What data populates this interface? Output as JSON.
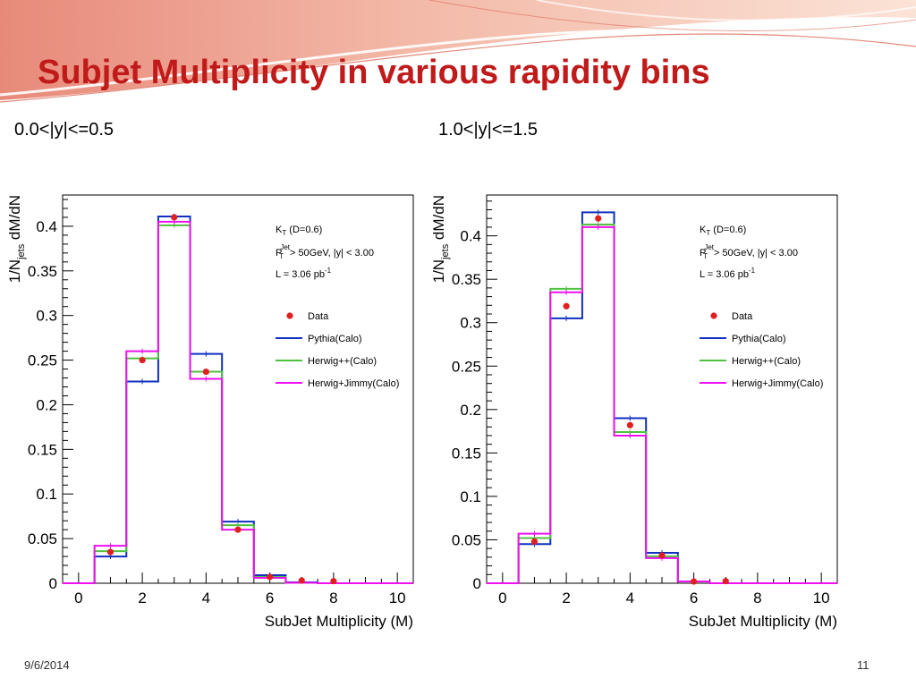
{
  "slide": {
    "title": "Subjet Multiplicity in various rapidity bins",
    "date": "9/6/2014",
    "page_number": "11",
    "accent_color": "#c01a1a",
    "banner_color": "#e8a090"
  },
  "chart_data": [
    {
      "type": "line",
      "title": "0.0<|y|<=0.5",
      "xlabel": "SubJet Multiplicity (M)",
      "ylabel_parts": [
        "1/N",
        "jets",
        " dM/dN"
      ],
      "xlim": [
        -0.5,
        10.5
      ],
      "ylim": [
        0,
        0.435
      ],
      "xticks": [
        0,
        2,
        4,
        6,
        8,
        10
      ],
      "yticks": [
        0,
        0.05,
        0.1,
        0.15,
        0.2,
        0.25,
        0.3,
        0.35,
        0.4
      ],
      "ytick_labels": [
        "0",
        "0.05",
        "0.1",
        "0.15",
        "0.2",
        "0.25",
        "0.3",
        "0.35",
        "0.4"
      ],
      "grid": false,
      "legend_position": "top-right",
      "info": {
        "line1_main": "K",
        "line1_sub": "T",
        "line1_rest": " (D=0.6)",
        "line2_main": "P",
        "line2_sub": "T",
        "line2_sup": "Jet",
        "line2_rest": " > 50GeV, |y| < 3.00",
        "line3_main": "L = 3.06 pb",
        "line3_sup": "-1"
      },
      "legend": [
        {
          "name": "Data",
          "color": "#e02020",
          "marker": "point"
        },
        {
          "name": "Pythia(Calo)",
          "color": "#1030c0",
          "marker": "line"
        },
        {
          "name": "Herwig++(Calo)",
          "color": "#50c040",
          "marker": "line"
        },
        {
          "name": "Herwig+Jimmy(Calo)",
          "color": "#ee10ee",
          "marker": "line"
        }
      ],
      "series": [
        {
          "name": "Pythia(Calo)",
          "color": "#1030c0",
          "bin_edges": [
            -0.5,
            0.5,
            1.5,
            2.5,
            3.5,
            4.5,
            5.5,
            6.5,
            7.5,
            8.5,
            9.5,
            10.5
          ],
          "values": [
            0,
            0.03,
            0.226,
            0.411,
            0.257,
            0.069,
            0.009,
            0.001,
            0,
            0,
            0
          ]
        },
        {
          "name": "Herwig++(Calo)",
          "color": "#50c040",
          "bin_edges": [
            -0.5,
            0.5,
            1.5,
            2.5,
            3.5,
            4.5,
            5.5,
            6.5,
            7.5,
            8.5,
            9.5,
            10.5
          ],
          "values": [
            0,
            0.036,
            0.252,
            0.401,
            0.237,
            0.065,
            0.007,
            0.0005,
            0,
            0,
            0
          ]
        },
        {
          "name": "Herwig+Jimmy(Calo)",
          "color": "#ee10ee",
          "bin_edges": [
            -0.5,
            0.5,
            1.5,
            2.5,
            3.5,
            4.5,
            5.5,
            6.5,
            7.5,
            8.5,
            9.5,
            10.5
          ],
          "values": [
            0,
            0.042,
            0.26,
            0.405,
            0.229,
            0.06,
            0.006,
            0.0005,
            0,
            0,
            0
          ]
        }
      ],
      "data_points": {
        "name": "Data",
        "color": "#e02020",
        "x": [
          1,
          2,
          3,
          4,
          5,
          6,
          7,
          8
        ],
        "y": [
          0.035,
          0.25,
          0.41,
          0.237,
          0.06,
          0.007,
          0.001,
          0.0003
        ]
      }
    },
    {
      "type": "line",
      "title": "1.0<|y|<=1.5",
      "xlabel": "SubJet Multiplicity (M)",
      "ylabel_parts": [
        "1/N",
        "jets",
        " dM/dN"
      ],
      "xlim": [
        -0.5,
        10.5
      ],
      "ylim": [
        0,
        0.447
      ],
      "xticks": [
        0,
        2,
        4,
        6,
        8,
        10
      ],
      "yticks": [
        0,
        0.05,
        0.1,
        0.15,
        0.2,
        0.25,
        0.3,
        0.35,
        0.4
      ],
      "ytick_labels": [
        "0",
        "0.05",
        "0.1",
        "0.15",
        "0.2",
        "0.25",
        "0.3",
        "0.35",
        "0.4"
      ],
      "grid": false,
      "legend_position": "top-right",
      "info": {
        "line1_main": "K",
        "line1_sub": "T",
        "line1_rest": " (D=0.6)",
        "line2_main": "P",
        "line2_sub": "T",
        "line2_sup": "Jet",
        "line2_rest": " > 50GeV, |y| < 3.00",
        "line3_main": "L = 3.06 pb",
        "line3_sup": "-1"
      },
      "legend": [
        {
          "name": "Data",
          "color": "#e02020",
          "marker": "point"
        },
        {
          "name": "Pythia(Calo)",
          "color": "#1030c0",
          "marker": "line"
        },
        {
          "name": "Herwig++(Calo)",
          "color": "#50c040",
          "marker": "line"
        },
        {
          "name": "Herwig+Jimmy(Calo)",
          "color": "#ee10ee",
          "marker": "line"
        }
      ],
      "series": [
        {
          "name": "Pythia(Calo)",
          "color": "#1030c0",
          "bin_edges": [
            -0.5,
            0.5,
            1.5,
            2.5,
            3.5,
            4.5,
            5.5,
            6.5,
            7.5,
            8.5,
            9.5,
            10.5
          ],
          "values": [
            0,
            0.045,
            0.305,
            0.427,
            0.19,
            0.035,
            0.002,
            0,
            0,
            0,
            0
          ]
        },
        {
          "name": "Herwig++(Calo)",
          "color": "#50c040",
          "bin_edges": [
            -0.5,
            0.5,
            1.5,
            2.5,
            3.5,
            4.5,
            5.5,
            6.5,
            7.5,
            8.5,
            9.5,
            10.5
          ],
          "values": [
            0,
            0.052,
            0.339,
            0.413,
            0.174,
            0.031,
            0.002,
            0,
            0,
            0,
            0
          ]
        },
        {
          "name": "Herwig+Jimmy(Calo)",
          "color": "#ee10ee",
          "bin_edges": [
            -0.5,
            0.5,
            1.5,
            2.5,
            3.5,
            4.5,
            5.5,
            6.5,
            7.5,
            8.5,
            9.5,
            10.5
          ],
          "values": [
            0,
            0.057,
            0.335,
            0.41,
            0.17,
            0.029,
            0.002,
            0,
            0,
            0,
            0
          ]
        }
      ],
      "data_points": {
        "name": "Data",
        "color": "#e02020",
        "x": [
          1,
          2,
          3,
          4,
          5,
          6,
          7
        ],
        "y": [
          0.048,
          0.319,
          0.42,
          0.182,
          0.032,
          0.002,
          0.0003
        ]
      }
    }
  ]
}
